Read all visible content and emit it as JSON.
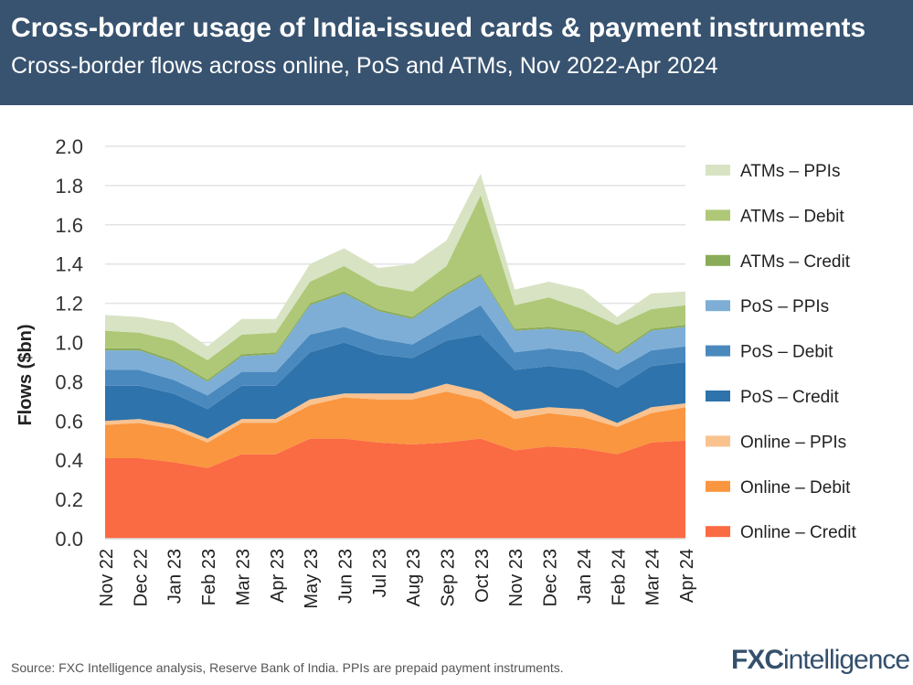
{
  "header": {
    "title": "Cross-border usage of India-issued cards & payment instruments",
    "subtitle": "Cross-border flows across online, PoS and ATMs, Nov 2022-Apr 2024"
  },
  "footer": {
    "source": "Source: FXC Intelligence analysis, Reserve Bank of India. PPIs are prepaid payment instruments.",
    "logo": "FXCintelligence"
  },
  "chart_data": {
    "type": "area",
    "stacked": true,
    "ylabel": "Flows ($bn)",
    "xlabel": "",
    "ylim": [
      0,
      2.0
    ],
    "yticks": [
      "0.0",
      "0.2",
      "0.4",
      "0.6",
      "0.8",
      "1.0",
      "1.2",
      "1.4",
      "1.6",
      "1.8",
      "2.0"
    ],
    "grid": true,
    "legend_position": "right",
    "categories": [
      "Nov 22",
      "Dec 22",
      "Jan 23",
      "Feb 23",
      "Mar 23",
      "Apr 23",
      "May 23",
      "Jun 23",
      "Jul 23",
      "Aug 23",
      "Sep 23",
      "Oct 23",
      "Nov 23",
      "Dec 23",
      "Jan 24",
      "Feb 24",
      "Mar 24",
      "Apr 24"
    ],
    "series": [
      {
        "name": "Online – Credit",
        "color": "#fa6a43",
        "values": [
          0.41,
          0.41,
          0.39,
          0.36,
          0.43,
          0.43,
          0.51,
          0.51,
          0.49,
          0.48,
          0.49,
          0.51,
          0.45,
          0.47,
          0.46,
          0.43,
          0.49,
          0.5
        ]
      },
      {
        "name": "Online – Debit",
        "color": "#fa963f",
        "values": [
          0.17,
          0.18,
          0.17,
          0.13,
          0.16,
          0.16,
          0.17,
          0.21,
          0.22,
          0.23,
          0.26,
          0.2,
          0.16,
          0.17,
          0.16,
          0.14,
          0.15,
          0.17
        ]
      },
      {
        "name": "Online – PPIs",
        "color": "#f9c28f",
        "values": [
          0.02,
          0.02,
          0.02,
          0.02,
          0.02,
          0.02,
          0.03,
          0.02,
          0.03,
          0.03,
          0.04,
          0.04,
          0.04,
          0.03,
          0.04,
          0.02,
          0.03,
          0.02
        ]
      },
      {
        "name": "PoS – Credit",
        "color": "#2e73ab",
        "values": [
          0.18,
          0.17,
          0.16,
          0.15,
          0.17,
          0.17,
          0.24,
          0.26,
          0.2,
          0.18,
          0.22,
          0.29,
          0.21,
          0.21,
          0.2,
          0.18,
          0.21,
          0.21
        ]
      },
      {
        "name": "PoS – Debit",
        "color": "#4a89be",
        "values": [
          0.08,
          0.08,
          0.07,
          0.07,
          0.07,
          0.07,
          0.09,
          0.08,
          0.08,
          0.07,
          0.08,
          0.15,
          0.09,
          0.09,
          0.09,
          0.09,
          0.08,
          0.08
        ]
      },
      {
        "name": "PoS – PPIs",
        "color": "#7eaed6",
        "values": [
          0.1,
          0.1,
          0.09,
          0.07,
          0.08,
          0.09,
          0.15,
          0.17,
          0.14,
          0.13,
          0.15,
          0.15,
          0.11,
          0.1,
          0.1,
          0.08,
          0.1,
          0.1
        ]
      },
      {
        "name": "ATMs – Credit",
        "color": "#8aab58",
        "values": [
          0.01,
          0.01,
          0.01,
          0.01,
          0.01,
          0.01,
          0.01,
          0.01,
          0.01,
          0.01,
          0.01,
          0.01,
          0.01,
          0.01,
          0.01,
          0.01,
          0.01,
          0.01
        ]
      },
      {
        "name": "ATMs – Debit",
        "color": "#aec878",
        "values": [
          0.09,
          0.08,
          0.1,
          0.1,
          0.1,
          0.1,
          0.11,
          0.13,
          0.12,
          0.13,
          0.14,
          0.4,
          0.12,
          0.15,
          0.11,
          0.14,
          0.1,
          0.1
        ]
      },
      {
        "name": "ATMs – PPIs",
        "color": "#d8e3c4",
        "values": [
          0.08,
          0.08,
          0.09,
          0.07,
          0.08,
          0.07,
          0.09,
          0.09,
          0.09,
          0.14,
          0.13,
          0.11,
          0.08,
          0.08,
          0.1,
          0.04,
          0.08,
          0.07
        ]
      }
    ]
  }
}
